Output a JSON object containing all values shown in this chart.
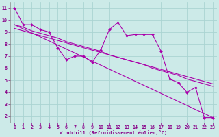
{
  "xlabel": "Windchill (Refroidissement éolien,°C)",
  "background_color": "#cceae8",
  "grid_color": "#aad4d2",
  "line_color": "#aa00aa",
  "xlim": [
    -0.5,
    23.5
  ],
  "ylim": [
    1.5,
    11.5
  ],
  "yticks": [
    2,
    3,
    4,
    5,
    6,
    7,
    8,
    9,
    10,
    11
  ],
  "xticks": [
    0,
    1,
    2,
    3,
    4,
    5,
    6,
    7,
    8,
    9,
    10,
    11,
    12,
    13,
    14,
    15,
    16,
    17,
    18,
    19,
    20,
    21,
    22,
    23
  ],
  "line1_x": [
    0,
    1,
    2,
    3,
    4,
    5,
    6,
    7,
    8,
    9,
    10,
    11,
    12,
    13,
    14,
    15,
    16,
    17,
    18,
    19,
    20,
    21,
    22,
    23
  ],
  "line1_y": [
    11.0,
    9.6,
    9.6,
    9.2,
    9.0,
    7.7,
    6.7,
    7.0,
    7.0,
    6.5,
    7.5,
    9.2,
    9.8,
    8.7,
    8.8,
    8.8,
    8.8,
    7.4,
    5.1,
    4.8,
    4.0,
    4.4,
    1.9,
    1.9
  ],
  "line2_x": [
    0,
    1,
    2,
    3,
    4,
    5,
    6,
    7,
    8,
    9,
    10,
    11,
    12,
    13,
    14,
    15,
    16,
    17,
    18,
    19,
    20,
    21,
    22,
    23
  ],
  "line2_y": [
    9.6,
    9.4,
    9.1,
    8.9,
    8.7,
    8.5,
    8.2,
    8.0,
    7.8,
    7.6,
    7.4,
    7.1,
    6.9,
    6.7,
    6.5,
    6.3,
    6.0,
    5.8,
    5.6,
    5.4,
    5.1,
    4.9,
    4.7,
    4.5
  ],
  "line3_x": [
    0,
    23
  ],
  "line3_y": [
    9.6,
    1.9
  ],
  "line4_x": [
    0,
    23
  ],
  "line4_y": [
    9.3,
    4.7
  ]
}
